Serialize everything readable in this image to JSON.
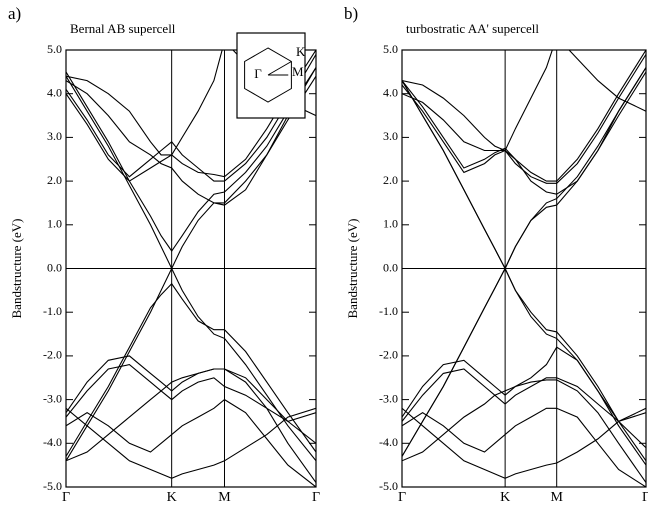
{
  "chart_data": [
    {
      "type": "line",
      "panel_label": "a)",
      "title": "Bernal AB supercell",
      "ylabel": "Bandstructure (eV)",
      "color": "#000000",
      "zero_line": true,
      "grid": "x",
      "inset_labels": [
        "Γ",
        "K",
        "M"
      ],
      "x": [
        0,
        0.2,
        0.4,
        0.6,
        0.8,
        0.9,
        1,
        1.1,
        1.25,
        1.4,
        1.5,
        1.7,
        1.9,
        2.1,
        2.366
      ],
      "xlim": [
        0,
        2.366
      ],
      "xticks": [
        {
          "value": 0,
          "label": "Γ"
        },
        {
          "value": 1,
          "label": "K"
        },
        {
          "value": 1.5,
          "label": "M"
        },
        {
          "value": 2.366,
          "label": "Γ"
        }
      ],
      "ylim": [
        -5,
        5
      ],
      "yticks": [
        {
          "value": 5,
          "label": "5.0"
        },
        {
          "value": 4,
          "label": "4.0"
        },
        {
          "value": 3,
          "label": "3.0"
        },
        {
          "value": 2,
          "label": "2.0"
        },
        {
          "value": 1,
          "label": "1.0"
        },
        {
          "value": 0,
          "label": "0.0"
        },
        {
          "value": -1,
          "label": "-1.0"
        },
        {
          "value": -2,
          "label": "-2.0"
        },
        {
          "value": -3,
          "label": "-3.0"
        },
        {
          "value": -4,
          "label": "-4.0"
        },
        {
          "value": -5,
          "label": "-5.0"
        }
      ],
      "series": [
        {
          "values": [
            4.4,
            3.6,
            2.8,
            1.9,
            1.0,
            0.5,
            0,
            0.5,
            1.1,
            1.5,
            1.5,
            2.0,
            2.6,
            3.4,
            4.4
          ]
        },
        {
          "values": [
            4.5,
            3.7,
            2.9,
            2.0,
            1.2,
            0.75,
            0.4,
            0.75,
            1.3,
            1.7,
            1.75,
            2.2,
            2.8,
            3.6,
            4.6
          ]
        },
        {
          "values": [
            4.0,
            3.3,
            2.5,
            2.0,
            2.3,
            2.45,
            2.6,
            2.4,
            2.2,
            2.15,
            2.1,
            2.5,
            3.2,
            4.0,
            5.0
          ]
        },
        {
          "values": [
            4.1,
            3.4,
            2.6,
            2.1,
            2.5,
            2.7,
            2.9,
            2.6,
            2.3,
            2.0,
            2.0,
            2.4,
            3.0,
            3.8,
            4.9
          ]
        },
        {
          "values": [
            4.3,
            4.0,
            3.5,
            2.9,
            2.6,
            2.4,
            2.3,
            2.0,
            1.7,
            1.5,
            1.45,
            1.8,
            2.6,
            3.5,
            4.6
          ]
        },
        {
          "values": [
            4.4,
            4.3,
            4.0,
            3.6,
            2.9,
            2.6,
            2.6,
            3.0,
            3.6,
            4.3,
            5.2,
            4.7,
            4.2,
            3.8,
            3.5
          ]
        },
        {
          "values": [
            -4.4,
            -3.6,
            -2.8,
            -1.9,
            -1.0,
            -0.5,
            0,
            -0.5,
            -1.1,
            -1.5,
            -1.6,
            -2.2,
            -2.9,
            -3.6,
            -4.4
          ]
        },
        {
          "values": [
            -4.3,
            -3.5,
            -2.7,
            -1.8,
            -0.9,
            -0.6,
            -0.35,
            -0.7,
            -1.2,
            -1.4,
            -1.4,
            -1.9,
            -2.6,
            -3.3,
            -4.2
          ]
        },
        {
          "values": [
            -3.3,
            -2.6,
            -2.1,
            -2.0,
            -2.4,
            -2.6,
            -2.8,
            -2.6,
            -2.4,
            -2.3,
            -2.3,
            -2.5,
            -3.0,
            -3.5,
            -4.0
          ]
        },
        {
          "values": [
            -3.4,
            -2.8,
            -2.3,
            -2.2,
            -2.6,
            -2.8,
            -3.0,
            -2.8,
            -2.6,
            -2.5,
            -2.7,
            -2.9,
            -3.2,
            -3.5,
            -3.3
          ]
        },
        {
          "values": [
            -3.2,
            -3.6,
            -4.0,
            -4.4,
            -4.6,
            -4.7,
            -4.8,
            -4.7,
            -4.6,
            -4.5,
            -4.4,
            -4.1,
            -3.8,
            -3.4,
            -3.2
          ]
        },
        {
          "values": [
            -3.6,
            -3.3,
            -3.6,
            -4.0,
            -4.2,
            -4.0,
            -3.8,
            -3.6,
            -3.4,
            -3.2,
            -3.0,
            -3.3,
            -3.9,
            -4.5,
            -5.0
          ]
        },
        {
          "values": [
            -4.4,
            -4.2,
            -3.8,
            -3.4,
            -3.0,
            -2.8,
            -2.6,
            -2.5,
            -2.4,
            -2.3,
            -2.3,
            -2.6,
            -3.2,
            -4.0,
            -4.9
          ]
        }
      ]
    },
    {
      "type": "line",
      "panel_label": "b)",
      "title": "turbostratic AA' supercell",
      "ylabel": "Bandstructure (eV)",
      "color": "#000000",
      "zero_line": true,
      "grid": "x",
      "x": [
        0,
        0.2,
        0.4,
        0.6,
        0.8,
        0.9,
        1,
        1.1,
        1.25,
        1.4,
        1.5,
        1.7,
        1.9,
        2.1,
        2.366
      ],
      "xlim": [
        0,
        2.366
      ],
      "xticks": [
        {
          "value": 0,
          "label": "Γ"
        },
        {
          "value": 1,
          "label": "K"
        },
        {
          "value": 1.5,
          "label": "M"
        },
        {
          "value": 2.366,
          "label": "Γ"
        }
      ],
      "ylim": [
        -5,
        5
      ],
      "yticks": [
        {
          "value": 5,
          "label": "5.0"
        },
        {
          "value": 4,
          "label": "4.0"
        },
        {
          "value": 3,
          "label": "3.0"
        },
        {
          "value": 2,
          "label": "2.0"
        },
        {
          "value": 1,
          "label": "1.0"
        },
        {
          "value": 0,
          "label": "0.0"
        },
        {
          "value": -1,
          "label": "-1.0"
        },
        {
          "value": -2,
          "label": "-2.0"
        },
        {
          "value": -3,
          "label": "-3.0"
        },
        {
          "value": -4,
          "label": "-4.0"
        },
        {
          "value": -5,
          "label": "-5.0"
        }
      ],
      "series": [
        {
          "values": [
            4.3,
            3.5,
            2.7,
            1.8,
            0.9,
            0.45,
            0,
            0.5,
            1.1,
            1.4,
            1.45,
            2.0,
            2.7,
            3.5,
            4.5
          ]
        },
        {
          "values": [
            4.3,
            3.5,
            2.7,
            1.8,
            0.9,
            0.45,
            0,
            0.5,
            1.1,
            1.5,
            1.6,
            2.1,
            2.8,
            3.6,
            4.6
          ]
        },
        {
          "values": [
            4.2,
            3.6,
            2.9,
            2.2,
            2.4,
            2.6,
            2.7,
            2.4,
            2.1,
            1.95,
            1.95,
            2.4,
            3.1,
            3.9,
            4.9
          ]
        },
        {
          "values": [
            4.3,
            3.7,
            3.0,
            2.3,
            2.5,
            2.65,
            2.75,
            2.5,
            2.2,
            2.0,
            2.0,
            2.5,
            3.2,
            4.0,
            5.0
          ]
        },
        {
          "values": [
            4.0,
            3.8,
            3.4,
            2.9,
            2.7,
            2.7,
            2.7,
            2.5,
            2.0,
            1.75,
            1.7,
            2.0,
            2.7,
            3.6,
            4.6
          ]
        },
        {
          "values": [
            4.3,
            4.2,
            3.9,
            3.5,
            3.0,
            2.8,
            2.7,
            3.2,
            3.9,
            4.6,
            5.3,
            4.8,
            4.3,
            3.9,
            3.6
          ]
        },
        {
          "values": [
            -4.3,
            -3.5,
            -2.7,
            -1.8,
            -0.9,
            -0.45,
            0,
            -0.5,
            -1.0,
            -1.4,
            -1.45,
            -2.0,
            -2.7,
            -3.5,
            -4.4
          ]
        },
        {
          "values": [
            -4.3,
            -3.5,
            -2.7,
            -1.8,
            -0.9,
            -0.45,
            0,
            -0.5,
            -1.1,
            -1.5,
            -1.6,
            -2.1,
            -2.8,
            -3.6,
            -4.5
          ]
        },
        {
          "values": [
            -3.4,
            -2.7,
            -2.2,
            -2.1,
            -2.5,
            -2.7,
            -2.9,
            -2.7,
            -2.5,
            -2.2,
            -1.8,
            -2.1,
            -2.8,
            -3.5,
            -4.1
          ]
        },
        {
          "values": [
            -3.5,
            -2.9,
            -2.4,
            -2.3,
            -2.7,
            -2.9,
            -3.1,
            -2.9,
            -2.7,
            -2.5,
            -2.5,
            -2.7,
            -3.1,
            -3.5,
            -3.3
          ]
        },
        {
          "values": [
            -3.2,
            -3.6,
            -4.0,
            -4.4,
            -4.6,
            -4.7,
            -4.8,
            -4.7,
            -4.6,
            -4.5,
            -4.45,
            -4.2,
            -3.9,
            -3.5,
            -3.2
          ]
        },
        {
          "values": [
            -3.6,
            -3.3,
            -3.6,
            -4.0,
            -4.2,
            -4.0,
            -3.8,
            -3.6,
            -3.4,
            -3.2,
            -3.2,
            -3.4,
            -4.0,
            -4.6,
            -5.0
          ]
        },
        {
          "values": [
            -4.4,
            -4.2,
            -3.8,
            -3.4,
            -3.1,
            -2.9,
            -2.8,
            -2.7,
            -2.6,
            -2.55,
            -2.55,
            -2.8,
            -3.3,
            -4.0,
            -4.9
          ]
        }
      ]
    }
  ]
}
